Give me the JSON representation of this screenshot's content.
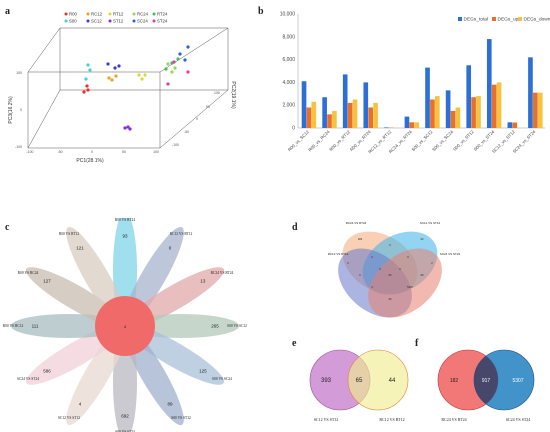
{
  "panels": {
    "a": {
      "letter": "a",
      "legend": [
        {
          "label": "R00",
          "color": "#e8312f"
        },
        {
          "label": "S00",
          "color": "#3fd4d4"
        },
        {
          "label": "RC12",
          "color": "#f0a020"
        },
        {
          "label": "SC12",
          "color": "#3b3bd6"
        },
        {
          "label": "RT12",
          "color": "#d9d93a"
        },
        {
          "label": "ST12",
          "color": "#8a2be2"
        },
        {
          "label": "RC24",
          "color": "#9ad45a"
        },
        {
          "label": "SC24",
          "color": "#2a63d8"
        },
        {
          "label": "RT24",
          "color": "#3fbf5f"
        },
        {
          "label": "ST24",
          "color": "#e03ab0"
        }
      ],
      "xlabel": "PC1(28.1%)",
      "ylabel": "PC3(16.2%)",
      "zlabel": "PC2(19.1%)",
      "ticks": {
        "vertical": [
          "100",
          "0",
          "-100"
        ],
        "x": [
          "-100",
          "-50",
          "0",
          "50",
          "100"
        ],
        "depth": [
          "-100",
          "-50",
          "0",
          "50"
        ],
        "right": [
          "-100",
          "-50",
          "0",
          "50",
          "100"
        ]
      }
    },
    "b": {
      "letter": "b",
      "chart_data": {
        "type": "bar",
        "categories": [
          "R00_vs_SC12",
          "R00_vs_RC24",
          "R00_vs_RT12",
          "R00_vs_RT24",
          "RC12_vs_RT12",
          "RC24_vs_RT24",
          "S00_vs_SC12",
          "S00_vs_SC24",
          "S00_vs_ST12",
          "S00_vs_ST24",
          "SC12_vs_ST12",
          "SC24_vs_ST24"
        ],
        "series": [
          {
            "name": "DEGs_total",
            "color": "#2e6fd6",
            "values": [
              4100,
              2700,
              4700,
              4000,
              50,
              1000,
              5300,
              3300,
              5500,
              7800,
              500,
              6200
            ]
          },
          {
            "name": "DEGs_up",
            "color": "#e8702a",
            "values": [
              1800,
              1200,
              2200,
              1800,
              30,
              500,
              2500,
              1500,
              2700,
              3800,
              480,
              3100
            ]
          },
          {
            "name": "DEGs_down",
            "color": "#f5c242",
            "values": [
              2300,
              1500,
              2500,
              2200,
              20,
              500,
              2800,
              1800,
              2800,
              4000,
              20,
              3100
            ]
          }
        ],
        "ylim": [
          0,
          10000
        ],
        "yticks": [
          "0",
          "2,000",
          "4,000",
          "6,000",
          "8,000",
          "10,000"
        ],
        "legend_position": "top-right"
      }
    },
    "c": {
      "letter": "c",
      "center_value": "4",
      "petals": [
        {
          "label": "R00 VS RT24",
          "value": "93",
          "color": "#7fd4e8"
        },
        {
          "label": "RC12 VS RT12",
          "value": "0",
          "color": "#a8b4cc"
        },
        {
          "label": "RC24 VS RT24",
          "value": "13",
          "color": "#e0a8a8"
        },
        {
          "label": "S00 VS SC12",
          "value": "265",
          "color": "#b4c8b8"
        },
        {
          "label": "S00 VS SC24",
          "value": "125",
          "color": "#a8c0d8"
        },
        {
          "label": "S00 VS ST12",
          "value": "89",
          "color": "#a0b0cc"
        },
        {
          "label": "S00 VS ST24",
          "value": "692",
          "color": "#b8b8c0"
        },
        {
          "label": "SC12 VS ST12",
          "value": "4",
          "color": "#e8d8d0"
        },
        {
          "label": "SC24 VS ST24",
          "value": "586",
          "color": "#f2d0d8"
        },
        {
          "label": "R00 VS RC12",
          "value": "111",
          "color": "#a8bcc0"
        },
        {
          "label": "R00 VS RC24",
          "value": "127",
          "color": "#c8bcb0"
        },
        {
          "label": "R00 VS RT12",
          "value": "121",
          "color": "#d8ccc0"
        }
      ]
    },
    "d": {
      "letter": "d",
      "sets": [
        {
          "label": "RC24 VS RT24",
          "color": "#f4a878"
        },
        {
          "label": "SC12 VS ST12",
          "color": "#4ab8e8"
        },
        {
          "label": "RC12 VS RT12",
          "color": "#6878c8"
        },
        {
          "label": "SC24 VS ST24",
          "color": "#e88070"
        }
      ],
      "values": [
        "182",
        "44",
        "0",
        "0",
        "3",
        "0",
        "2",
        "0",
        "0",
        "65",
        "0",
        "69",
        "5307",
        "4",
        "26"
      ]
    },
    "e": {
      "letter": "e",
      "left_value": "393",
      "overlap_value": "65",
      "right_value": "44",
      "left_label": "SC12 VS ST12",
      "right_label": "RC12 VS RT12",
      "left_color": "#c070c8",
      "right_color": "#e8e060"
    },
    "f": {
      "letter": "f",
      "left_value": "182",
      "overlap_value": "917",
      "right_value": "5307",
      "left_label": "RC24 VS RT24",
      "right_label": "SC24 VS ST24",
      "left_color": "#f06060",
      "right_color": "#2080c0"
    }
  }
}
